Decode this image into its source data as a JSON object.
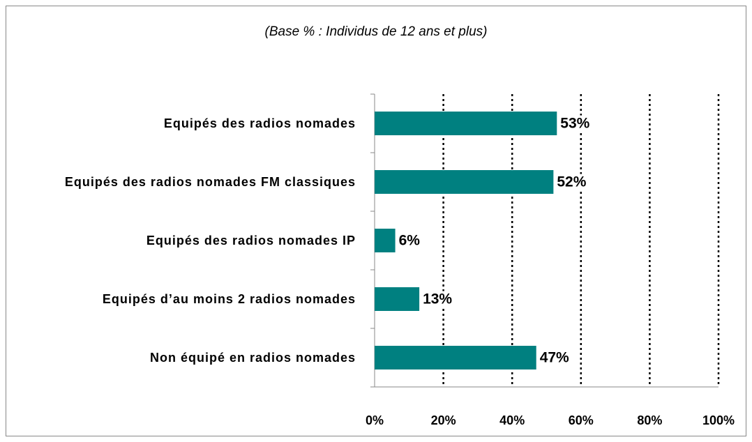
{
  "chart_data": {
    "type": "hbar",
    "title": "(Base % : Individus de 12 ans et plus)",
    "categories": [
      "Equipés des radios nomades",
      "Equipés des radios nomades FM classiques",
      "Equipés des radios nomades IP",
      "Equipés d’au moins 2 radios nomades",
      "Non équipé en radios nomades"
    ],
    "values": [
      53,
      52,
      6,
      13,
      47
    ],
    "value_labels": [
      "53%",
      "52%",
      "6%",
      "13%",
      "47%"
    ],
    "color": "#008080",
    "xlim": [
      0,
      100
    ],
    "xticks": [
      {
        "value": 0,
        "label": "0%"
      },
      {
        "value": 20,
        "label": "20%"
      },
      {
        "value": 40,
        "label": "40%"
      },
      {
        "value": 60,
        "label": "60%"
      },
      {
        "value": 80,
        "label": "80%"
      },
      {
        "value": 100,
        "label": "100%"
      }
    ],
    "grid": true
  }
}
